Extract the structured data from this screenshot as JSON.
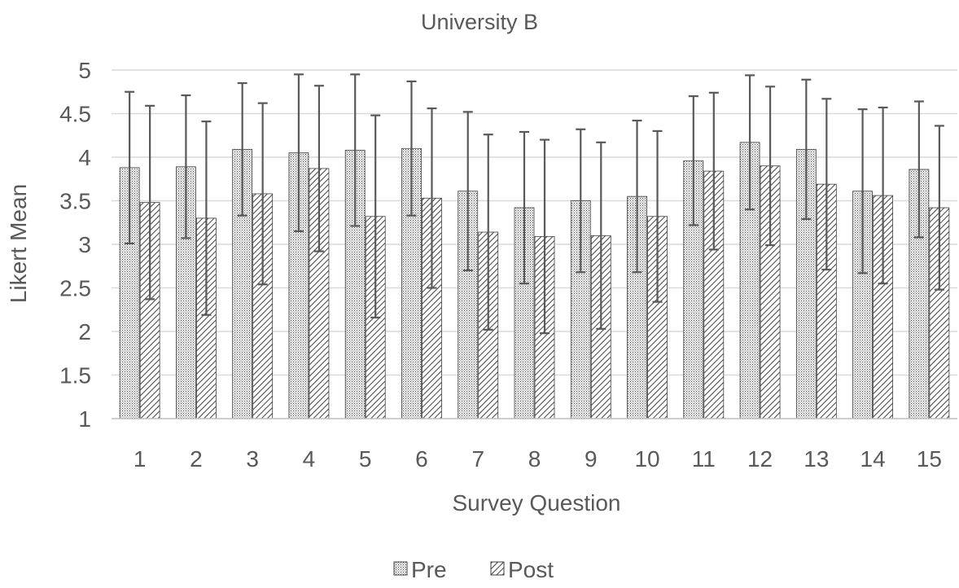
{
  "chart_data": {
    "type": "bar",
    "title": "University B",
    "xlabel": "Survey Question",
    "ylabel": "Likert Mean",
    "ylim": [
      1,
      5
    ],
    "yticks": [
      "1",
      "1.5",
      "2",
      "2.5",
      "3",
      "3.5",
      "4",
      "4.5",
      "5"
    ],
    "categories": [
      "1",
      "2",
      "3",
      "4",
      "5",
      "6",
      "7",
      "8",
      "9",
      "10",
      "11",
      "12",
      "13",
      "14",
      "15"
    ],
    "grid": true,
    "legend_position": "bottom",
    "error_bars": true,
    "series": [
      {
        "name": "Pre",
        "pattern": "dots",
        "values": [
          3.88,
          3.89,
          4.09,
          4.05,
          4.08,
          4.1,
          3.61,
          3.42,
          3.5,
          3.55,
          3.96,
          4.17,
          4.09,
          3.61,
          3.86
        ],
        "errors": [
          0.87,
          0.82,
          0.76,
          0.9,
          0.87,
          0.77,
          0.91,
          0.87,
          0.82,
          0.87,
          0.74,
          0.77,
          0.8,
          0.94,
          0.78
        ]
      },
      {
        "name": "Post",
        "pattern": "diagonal-hatch",
        "values": [
          3.48,
          3.3,
          3.58,
          3.87,
          3.32,
          3.53,
          3.14,
          3.09,
          3.1,
          3.32,
          3.84,
          3.9,
          3.69,
          3.56,
          3.42
        ],
        "errors": [
          1.11,
          1.11,
          1.04,
          0.95,
          1.16,
          1.03,
          1.12,
          1.11,
          1.07,
          0.98,
          0.9,
          0.91,
          0.98,
          1.01,
          0.94
        ]
      }
    ],
    "colors": {
      "axis": "#bfbfbf",
      "grid": "#d9d9d9",
      "text": "#595959",
      "bar_edge": "#404040",
      "error_bar": "#595959",
      "pattern": "#404040"
    }
  }
}
